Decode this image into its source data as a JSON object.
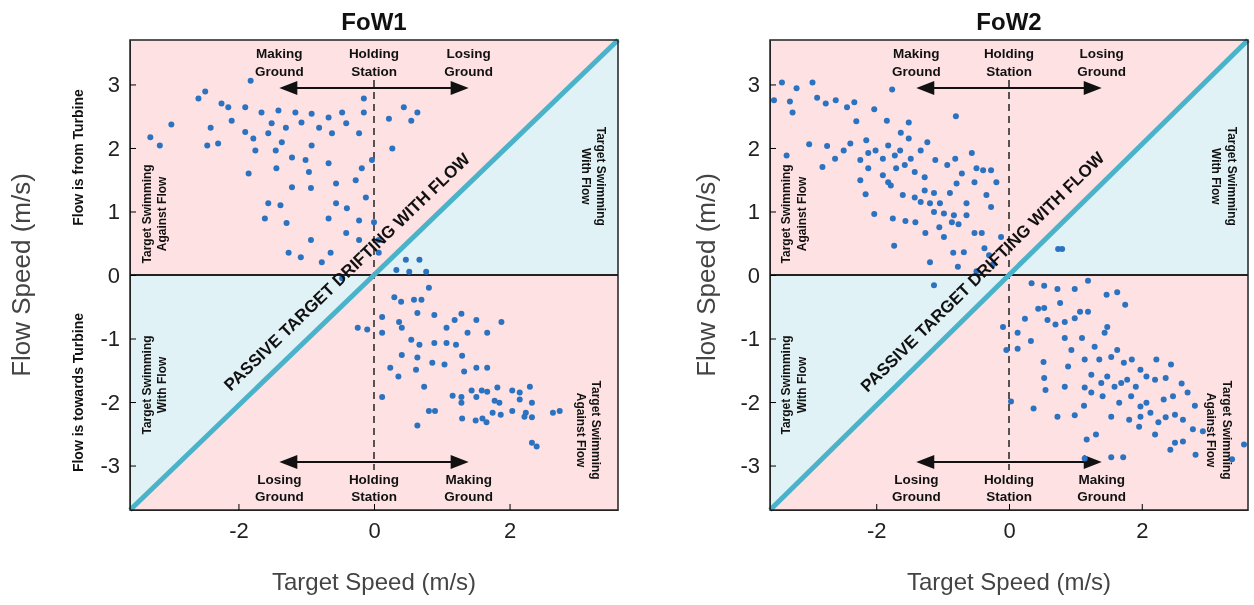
{
  "chart_data": [
    {
      "type": "scatter",
      "title": "FoW1",
      "xlabel": "Target Speed (m/s)",
      "ylabel": "Flow Speed (m/s)",
      "xlim": [
        -3.6,
        3.6
      ],
      "ylim": [
        -3.7,
        3.7
      ],
      "xticks": [
        -2,
        0,
        2
      ],
      "yticks": [
        -3,
        -2,
        -1,
        0,
        1,
        2,
        3
      ],
      "ref_lines": [
        {
          "axis": "y",
          "value": 0,
          "color": "#222222",
          "line_style": "solid"
        },
        {
          "axis": "x",
          "value": 0,
          "color": "#222222",
          "line_style": "dashed"
        }
      ],
      "series": [
        {
          "type": "line",
          "color": "#4bb3c9",
          "x": [
            -3.6,
            0,
            3.6
          ],
          "values": [
            -3.7,
            0,
            3.7
          ],
          "lower": [
            -3.7,
            0,
            0
          ],
          "upper": [
            0,
            0,
            3.7
          ]
        },
        {
          "type": "scatter",
          "color": "#2b72c0",
          "marker": "circle",
          "x": [
            -2.59,
            -2.49,
            -1.82,
            -2.99,
            -3.3,
            -3.16,
            -2.46,
            -2.3,
            -2.15,
            -1.9,
            -1.66,
            -1.41,
            -1.16,
            -0.92,
            -0.67,
            -0.47,
            -0.15,
            -0.15,
            0.22,
            0.44,
            0.64,
            0.55,
            0.27,
            -1.85,
            -1.56,
            -1.38,
            -1.61,
            -1.29,
            -1.26,
            -1.08,
            -0.93,
            -0.77,
            -0.67,
            -0.64,
            -0.41,
            -0.22,
            -0.22,
            -0.12,
            -0.03,
            0,
            0.07,
            -0.93,
            -1.21,
            -1.44,
            -1.21,
            -0.96,
            -0.67,
            -0.56,
            -0.27,
            -0.22,
            -0.62,
            -0.92,
            -1.36,
            -1.56,
            -1.78,
            -1.9,
            -2.1,
            -2.41,
            -2.25,
            -1.51,
            -1.3,
            -1.07,
            -0.81,
            -0.41,
            -1.45,
            -1.75,
            -1.01,
            -0.18,
            -0.4,
            -0.56,
            0.07,
            0.47,
            0.67,
            0.77,
            0.33,
            0.52,
            -0.47,
            0.81,
            0.3,
            0.4,
            0.59,
            0.7,
            0.12,
            -0.24,
            -0.1,
            0.12,
            0.37,
            0.41,
            0.64,
            0.89,
            1.19,
            1.29,
            1.51,
            1.88,
            1.07,
            1.38,
            1.67,
            0.55,
            0.67,
            0.89,
            1.07,
            1.21,
            0.41,
            0.64,
            0.86,
            1.04,
            1.3,
            1.51,
            1.67,
            0.24,
            0.36,
            0.62,
            1.33,
            0.74,
            0.12,
            1.16,
            1.29,
            1.44,
            1.59,
            1.67,
            1.82,
            2.04,
            2.3,
            2.15,
            1.29,
            1.51,
            1.78,
            1.85,
            2.15,
            2.33,
            0.81,
            0.9,
            1.3,
            1.5,
            1.6,
            1.66,
            1.75,
            1.87,
            2.04,
            2.24,
            2.22,
            2.33,
            2.64,
            2.74,
            0.64,
            2.33,
            2.4
          ],
          "values": [
            2.78,
            2.89,
            3.06,
            2.37,
            2.17,
            2.04,
            2.04,
            2.07,
            2.64,
            2.64,
            2.56,
            2.59,
            2.56,
            2.54,
            2.48,
            2.56,
            2.56,
            2.78,
            2.46,
            2.64,
            2.56,
            2.43,
            1.99,
            1.6,
            1.13,
            1.1,
            0.89,
            0.82,
            0.35,
            0.28,
            0.55,
            0.2,
            0.89,
            0.35,
            0.66,
            0.86,
            0.55,
            1.22,
            1.81,
            0.83,
            0.55,
            1.37,
            1.38,
            1.68,
            1.85,
            1.62,
            1.76,
            1.44,
            1.49,
            2.23,
            2.23,
            2.04,
            2.09,
            2.23,
            2.15,
            2.25,
            2.43,
            2.32,
            2.7,
            2.39,
            2.32,
            2.4,
            2.32,
            2.39,
            1.96,
            1.96,
            1.81,
            1.68,
            1.05,
            1.13,
            0.35,
            0.24,
            0.24,
            0.05,
            0.08,
            0.05,
            -0.05,
            -0.2,
            -0.35,
            -0.42,
            -0.39,
            -0.39,
            -0.66,
            -0.83,
            -0.86,
            -0.91,
            -0.74,
            -0.83,
            -0.6,
            -0.63,
            -0.71,
            -0.61,
            -0.71,
            -0.74,
            -0.83,
            -0.91,
            -0.91,
            -1.02,
            -1.1,
            -1.07,
            -1.07,
            -1.1,
            -1.26,
            -1.3,
            -1.38,
            -1.41,
            -1.27,
            -1.46,
            -1.46,
            -1.46,
            -1.6,
            -1.49,
            -1.52,
            -1.76,
            -1.92,
            -1.9,
            -1.92,
            -1.82,
            -1.82,
            -1.84,
            -1.77,
            -1.82,
            -1.76,
            -1.85,
            -2.01,
            -1.92,
            -1.98,
            -2.01,
            -1.96,
            -2.01,
            -2.14,
            -2.14,
            -2.26,
            -2.29,
            -2.26,
            -2.32,
            -2.17,
            -2.2,
            -2.14,
            -2.17,
            -2.23,
            -2.24,
            -2.17,
            -2.14,
            -2.37,
            -2.64,
            -2.7
          ]
        }
      ],
      "annotations": [
        "Making Ground",
        "Holding Station",
        "Losing Ground",
        "Losing Ground",
        "Holding Station",
        "Making Ground",
        "Target Swimming Against Flow",
        "Target Swimming With Flow",
        "Target Swimming With Flow",
        "Target Swimming Against Flow",
        "PASSIVE TARGET DRIFTING WITH FLOW",
        "Flow is from Turbine",
        "Flow is towards Turbine"
      ]
    },
    {
      "type": "scatter",
      "title": "FoW2",
      "xlabel": "Target Speed (m/s)",
      "ylabel": "Flow Speed (m/s)",
      "xlim": [
        -3.6,
        3.6
      ],
      "ylim": [
        -3.7,
        3.7
      ],
      "xticks": [
        -2,
        0,
        2
      ],
      "yticks": [
        -3,
        -2,
        -1,
        0,
        1,
        2,
        3
      ],
      "ref_lines": [
        {
          "axis": "y",
          "value": 0,
          "color": "#222222",
          "line_style": "solid"
        },
        {
          "axis": "x",
          "value": 0,
          "color": "#222222",
          "line_style": "dashed"
        }
      ],
      "series": [
        {
          "type": "line",
          "color": "#4bb3c9",
          "x": [
            -3.6,
            0,
            3.6
          ],
          "values": [
            -3.7,
            0,
            3.7
          ],
          "lower": [
            -3.7,
            0,
            0
          ],
          "upper": [
            0,
            0,
            3.7
          ]
        },
        {
          "type": "scatter",
          "color": "#2b72c0",
          "marker": "circle",
          "x": [
            -3.42,
            -2.96,
            -3.2,
            -3.54,
            -3.3,
            -3.26,
            -2.89,
            -2.76,
            -2.61,
            -2.44,
            -2.33,
            -2.03,
            -1.76,
            -2.3,
            -1.84,
            -1.51,
            -1.63,
            -0.8,
            -3.01,
            -2.74,
            -3.35,
            -2.81,
            -2.62,
            -2.49,
            -2.39,
            -2.24,
            -2.15,
            -2.12,
            -2.01,
            -1.9,
            -1.82,
            -1.72,
            -1.64,
            -1.51,
            -1.48,
            -1.33,
            -1.23,
            -2.12,
            -1.9,
            -1.7,
            -1.57,
            -1.42,
            -1.27,
            -1.11,
            -0.93,
            -0.81,
            -0.71,
            -0.56,
            -0.49,
            -0.39,
            -0.27,
            -0.19,
            -0.52,
            -0.79,
            -2.24,
            -2.16,
            -1.82,
            -1.78,
            -1.6,
            -1.42,
            -1.27,
            -1.13,
            -1.33,
            -1.19,
            -1.04,
            -0.89,
            -0.64,
            -0.34,
            -0.27,
            -1.13,
            -0.98,
            -0.83,
            -0.64,
            -2.03,
            -1.75,
            -1.56,
            -1.41,
            -1.26,
            -1.05,
            -0.86,
            -0.76,
            -0.52,
            -0.41,
            -0.12,
            -0.98,
            -0.84,
            -0.68,
            -0.37,
            -0.3,
            -1.73,
            -1.19,
            -0.77,
            -0.49,
            -0.24,
            0.74,
            0.8,
            -1.13,
            0.34,
            0.53,
            0.73,
            0.99,
            1.19,
            1.47,
            1.63,
            1.75,
            0.77,
            0.44,
            0.53,
            0.24,
            -0.09,
            0.13,
            -0.04,
            0.13,
            0.03,
            0.33,
            0.58,
            0.7,
            0.84,
            0.99,
            1.07,
            1.19,
            0.52,
            0.53,
            0.55,
            0.37,
            0.73,
            0.99,
            1.13,
            1.17,
            1.14,
            1.31,
            1.54,
            1.72,
            0.84,
            0.94,
            1.1,
            1.14,
            1.29,
            1.44,
            1.48,
            1.36,
            1.54,
            1.63,
            1.73,
            1.85,
            1.98,
            2.22,
            2.44,
            0.89,
            0.84,
            1.24,
            1.39,
            1.48,
            1.59,
            1.69,
            1.78,
            1.91,
            2.07,
            2.2,
            2.36,
            2.6,
            1.24,
            1.41,
            1.14,
            1.66,
            1.84,
            1.98,
            2.07,
            2.13,
            2.33,
            2.47,
            2.69,
            1.98,
            2.25,
            2.36,
            2.5,
            2.62,
            2.8,
            2.77,
            2.62,
            2.43,
            2.92,
            2.81,
            3.36,
            3.54,
            1.96,
            2.2,
            2.5,
            1.81,
            1.54
          ],
          "values": [
            3.03,
            3.03,
            2.94,
            2.75,
            2.73,
            2.56,
            2.79,
            2.7,
            2.75,
            2.64,
            2.72,
            2.61,
            2.92,
            2.42,
            2.43,
            2.4,
            2.24,
            2.5,
            2.06,
            2.03,
            1.88,
            1.7,
            1.83,
            1.96,
            2.07,
            1.81,
            2.12,
            1.92,
            1.96,
            1.83,
            2.04,
            1.88,
            1.96,
            2.15,
            1.83,
            1.96,
            2.09,
            1.68,
            1.57,
            1.68,
            1.73,
            1.62,
            1.54,
            1.81,
            1.73,
            1.83,
            1.6,
            1.92,
            1.68,
            1.65,
            1.65,
            1.46,
            1.46,
            1.44,
            1.49,
            1.27,
            1.46,
            1.41,
            1.26,
            1.22,
            1.33,
            1.29,
            1.15,
            1.13,
            1.13,
            1.29,
            1.13,
            1.26,
            1.07,
            0.99,
            0.97,
            0.94,
            0.94,
            0.96,
            0.89,
            0.85,
            0.83,
            0.66,
            0.75,
            0.83,
            0.8,
            0.66,
            0.66,
            0.6,
            0.6,
            0.35,
            0.36,
            0.42,
            0.31,
            0.46,
            0.2,
            0.13,
            0.06,
            0.17,
            0.41,
            0.41,
            -0.16,
            -0.13,
            -0.17,
            -0.22,
            -0.22,
            -0.09,
            -0.31,
            -0.27,
            -0.47,
            -0.44,
            -0.53,
            -0.52,
            -0.69,
            -0.82,
            -0.91,
            -1.18,
            -1.16,
            -1.99,
            -1.04,
            -0.71,
            -0.78,
            -0.74,
            -0.68,
            -0.58,
            -0.58,
            -1.37,
            -1.62,
            -1.81,
            -2.1,
            -2.23,
            -2.21,
            -2.06,
            -2.59,
            -2.89,
            -2.51,
            -2.87,
            -2.87,
            -0.99,
            -1.18,
            -0.99,
            -1.33,
            -1.13,
            -0.91,
            -0.82,
            -1.33,
            -1.29,
            -1.18,
            -1.38,
            -1.33,
            -1.49,
            -1.33,
            -1.41,
            -1.44,
            -1.76,
            -1.57,
            -1.7,
            -1.6,
            -1.76,
            -1.7,
            -1.65,
            -1.76,
            -1.6,
            -1.65,
            -1.62,
            -1.71,
            -1.85,
            -1.91,
            -1.77,
            -2.01,
            -1.91,
            -2.07,
            -2.01,
            -2.17,
            -1.96,
            -1.91,
            -1.85,
            -2.23,
            -2.32,
            -2.24,
            -2.2,
            -2.28,
            -2.06,
            -2.43,
            -2.62,
            -2.75,
            -2.46,
            -2.83,
            -2.9,
            -2.67,
            -2.39,
            -2.51,
            -2.64,
            -2.28,
            -2.23
          ]
        }
      ],
      "annotations": [
        "Making Ground",
        "Holding Station",
        "Losing Ground",
        "Losing Ground",
        "Holding Station",
        "Making Ground",
        "Target Swimming Against Flow",
        "Target Swimming With Flow",
        "Target Swimming With Flow",
        "Target Swimming Against Flow",
        "PASSIVE TARGET DRIFTING WITH FLOW"
      ]
    }
  ]
}
